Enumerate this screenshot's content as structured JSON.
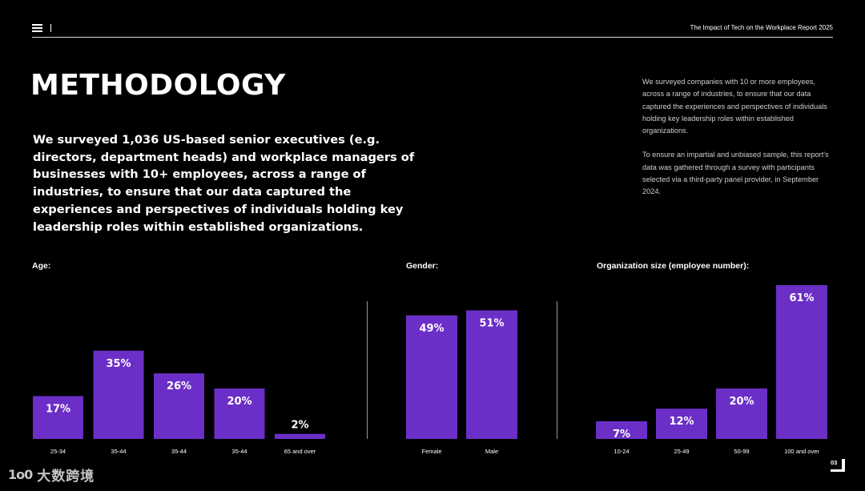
{
  "header": {
    "report_title": "The Impact of Tech on the Workplace Report 2025",
    "menu_icon": "menu-icon"
  },
  "main": {
    "title": "METHODOLOGY",
    "lead": "We surveyed 1,036 US-based senior executives (e.g. directors, department heads) and workplace managers of businesses with 10+ employees, across a range of industries, to ensure that our data captured the experiences and perspectives  of individuals holding key leadership roles within  established organizations.",
    "side_note": {
      "paragraph_1": "We surveyed companies with 10 or more employees, across a range of industries, to ensure that our data captured the experiences and perspectives of individuals holding key leadership roles within established organizations.",
      "paragraph_2": "To ensure an impartial and unbiased sample, this report's data was gathered through a survey with participants selected via a third-party panel provider, in September 2024."
    }
  },
  "colors": {
    "bar": "#6b2fc7",
    "background": "#000000",
    "text": "#ffffff"
  },
  "chart_data": [
    {
      "type": "bar",
      "title": "Age:",
      "categories": [
        "25-34",
        "35-44",
        "35-44",
        "35-44",
        "65 and over"
      ],
      "values": [
        17,
        35,
        26,
        20,
        2
      ],
      "labels": [
        "17%",
        "35%",
        "26%",
        "20%",
        "2%"
      ],
      "unit": "%",
      "ylim": [
        0,
        61
      ]
    },
    {
      "type": "bar",
      "title": "Gender:",
      "categories": [
        "Female",
        "Male"
      ],
      "values": [
        49,
        51
      ],
      "labels": [
        "49%",
        "51%"
      ],
      "unit": "%",
      "ylim": [
        0,
        61
      ]
    },
    {
      "type": "bar",
      "title": "Organization size (employee number):",
      "categories": [
        "10-24",
        "25-49",
        "50-99",
        "100 and over"
      ],
      "values": [
        7,
        12,
        20,
        61
      ],
      "labels": [
        "7%",
        "12%",
        "20%",
        "61%"
      ],
      "unit": "%",
      "ylim": [
        0,
        61
      ]
    }
  ],
  "footer": {
    "page_number": "03",
    "watermark_logo": "1o0",
    "watermark_text": "大数跨境"
  }
}
